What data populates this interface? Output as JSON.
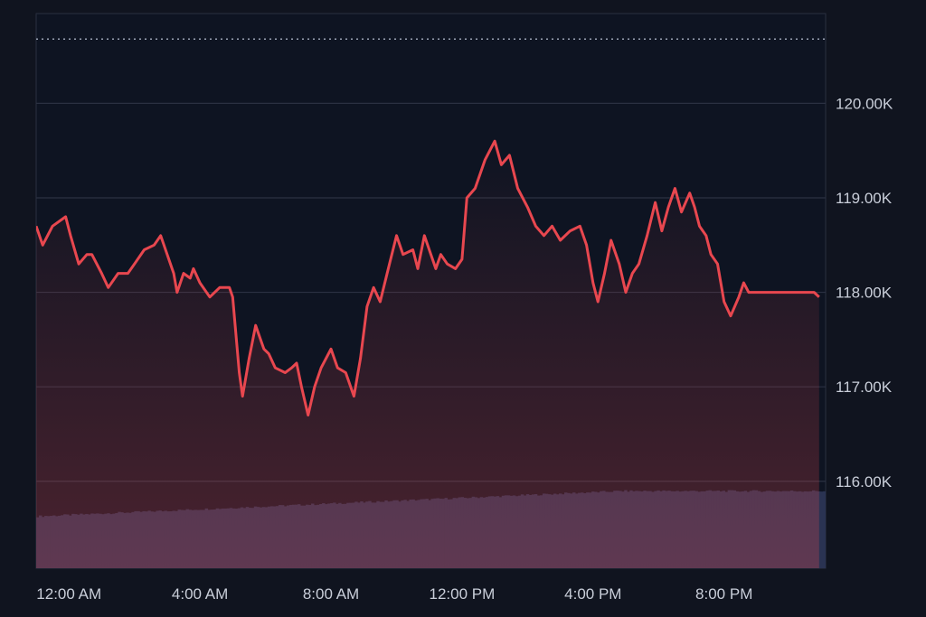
{
  "chart_data": {
    "type": "line",
    "title": "",
    "xlabel": "",
    "ylabel": "",
    "x_tick_labels": [
      "12:00 AM",
      "4:00 AM",
      "8:00 AM",
      "12:00 PM",
      "4:00 PM",
      "8:00 PM"
    ],
    "x_tick_hours": [
      1,
      5,
      9,
      13,
      17,
      21
    ],
    "y_tick_labels": [
      "116.00K",
      "117.00K",
      "118.00K",
      "119.00K",
      "120.00K"
    ],
    "y_tick_values": [
      116000,
      117000,
      118000,
      119000,
      120000
    ],
    "ylim": [
      115080,
      120950
    ],
    "xlim_hours": [
      0,
      24.1
    ],
    "reference_line": 120680,
    "grid": true,
    "line_color": "#e8474f",
    "volume_color": "#2a3352",
    "series": [
      {
        "values_hours": [
          0,
          0.2,
          0.5,
          0.9,
          1.05,
          1.3,
          1.55,
          1.7,
          2.0,
          2.2,
          2.5,
          2.8,
          3.0,
          3.3,
          3.6,
          3.8,
          3.9,
          4.05,
          4.2,
          4.3,
          4.5,
          4.7,
          4.8,
          5.0,
          5.3,
          5.6,
          5.9,
          6.0,
          6.2,
          6.3,
          6.5,
          6.7,
          6.95,
          7.1,
          7.3,
          7.6,
          7.8,
          7.95,
          8.1,
          8.3,
          8.5,
          8.7,
          9.0,
          9.2,
          9.45,
          9.7,
          9.9,
          10.1,
          10.3,
          10.5,
          10.75,
          11.0,
          11.2,
          11.5,
          11.65,
          11.85,
          12.05,
          12.2,
          12.35,
          12.55,
          12.8,
          13.0,
          13.15,
          13.4,
          13.7,
          14.0,
          14.2,
          14.45,
          14.7,
          15.0,
          15.25,
          15.5,
          15.75,
          16.0,
          16.3,
          16.6,
          16.8,
          17.0,
          17.15,
          17.35,
          17.55,
          17.8,
          18.0,
          18.2,
          18.4,
          18.65,
          18.9,
          19.1,
          19.3,
          19.5,
          19.7,
          19.95,
          20.1,
          20.25,
          20.45,
          20.6,
          20.8,
          21.0,
          21.2,
          21.45,
          21.6,
          21.75,
          21.95,
          22.1,
          22.3,
          22.5,
          22.7,
          22.85,
          23.0,
          23.15,
          23.3,
          23.55,
          23.75,
          23.9
        ],
        "values": [
          118700,
          118500,
          118700,
          118800,
          118600,
          118300,
          118400,
          118400,
          118200,
          118050,
          118200,
          118200,
          118300,
          118450,
          118500,
          118600,
          118500,
          118350,
          118200,
          118000,
          118200,
          118150,
          118250,
          118100,
          117950,
          118050,
          118050,
          117950,
          117150,
          116900,
          117300,
          117650,
          117400,
          117350,
          117200,
          117150,
          117200,
          117250,
          117000,
          116700,
          117000,
          117200,
          117400,
          117200,
          117150,
          116900,
          117300,
          117850,
          118050,
          117900,
          118250,
          118600,
          118400,
          118450,
          118250,
          118600,
          118400,
          118250,
          118400,
          118300,
          118250,
          118350,
          119000,
          119100,
          119400,
          119600,
          119350,
          119450,
          119100,
          118900,
          118700,
          118600,
          118700,
          118550,
          118650,
          118700,
          118500,
          118100,
          117900,
          118200,
          118550,
          118300,
          118000,
          118200,
          118300,
          118600,
          118950,
          118650,
          118900,
          119100,
          118850,
          119050,
          118900,
          118700,
          118600,
          118400,
          118300,
          117900,
          117750,
          117950,
          118100,
          118000,
          118000,
          118000,
          118000,
          118000,
          118000,
          118000,
          118000,
          118000,
          118000,
          118000,
          118000,
          117950
        ]
      }
    ],
    "volume": {
      "start_level": 0.41,
      "end_level": 0.61
    }
  }
}
